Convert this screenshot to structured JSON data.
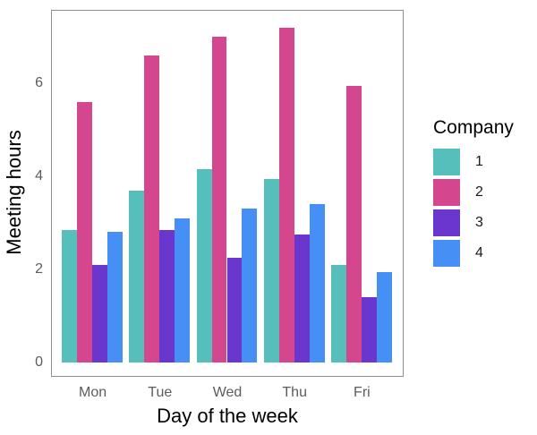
{
  "chart_data": {
    "type": "bar",
    "title": "",
    "xlabel": "Day of the week",
    "ylabel": "Meeting hours",
    "categories": [
      "Mon",
      "Tue",
      "Wed",
      "Thu",
      "Fri"
    ],
    "series": [
      {
        "name": "1",
        "color": "#56BEBB",
        "values": [
          2.85,
          3.7,
          4.15,
          3.95,
          2.1
        ]
      },
      {
        "name": "2",
        "color": "#D4478F",
        "values": [
          5.6,
          6.6,
          7.0,
          7.2,
          5.95
        ]
      },
      {
        "name": "3",
        "color": "#6936CE",
        "values": [
          2.1,
          2.85,
          2.25,
          2.75,
          1.4
        ]
      },
      {
        "name": "4",
        "color": "#4690F5",
        "values": [
          2.8,
          3.1,
          3.3,
          3.4,
          1.95
        ]
      }
    ],
    "legend_title": "Company",
    "legend_position": "right",
    "yticks": [
      0,
      2,
      4,
      6
    ],
    "ylim": [
      0,
      7.55
    ],
    "grid": false,
    "colors": {
      "background": "#ffffff",
      "panel_border": "#8e8e8e",
      "axis_text": "#5c5c5c",
      "title_text": "#000000"
    }
  }
}
